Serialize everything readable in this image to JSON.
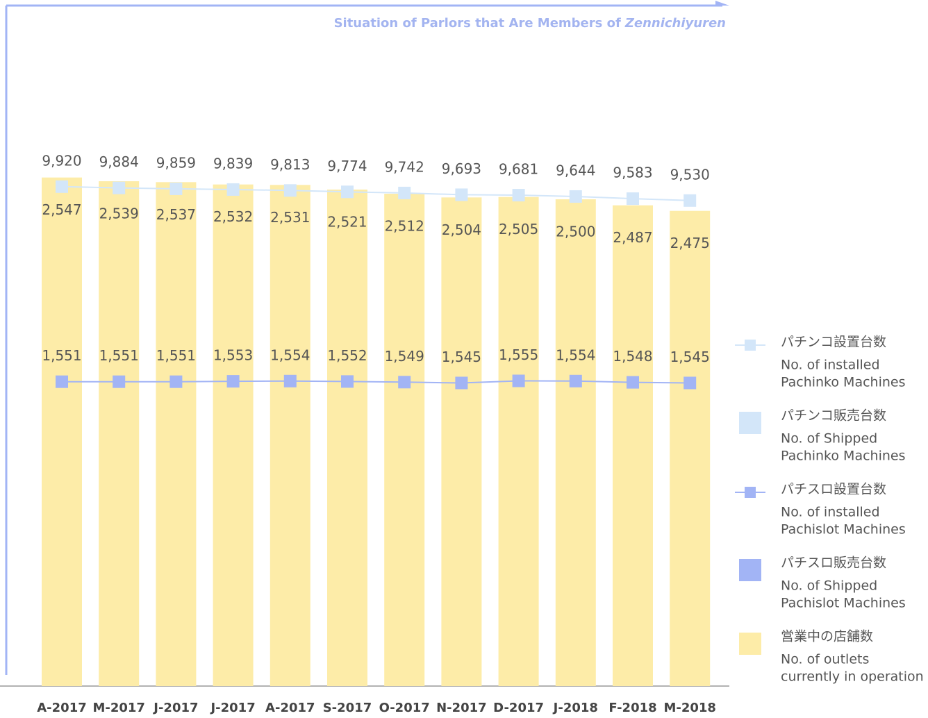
{
  "chart_data": {
    "type": "bar-line",
    "title": "Situation of Parlors that Are Members of",
    "title_em": "Zennichiyuren",
    "categories": [
      "A-2017",
      "M-2017",
      "J-2017",
      "J-2017",
      "A-2017",
      "S-2017",
      "O-2017",
      "N-2017",
      "D-2017",
      "J-2018",
      "F-2018",
      "M-2018"
    ],
    "series": [
      {
        "name": "パチンコ設置台数",
        "name_en": [
          "No. of installed",
          "Pachinko Machines"
        ],
        "color": "#d3e6f9",
        "marker": "line",
        "ylim": [
          -4100,
          14380
        ],
        "values": [
          9920,
          9884,
          9859,
          9839,
          9813,
          9774,
          9742,
          9693,
          9681,
          9644,
          9583,
          9530
        ],
        "value_labels": [
          "9,920",
          "9,884",
          "9,859",
          "9,839",
          "9,813",
          "9,774",
          "9,742",
          "9,693",
          "9,681",
          "9,644",
          "9,583",
          "9,530"
        ]
      },
      {
        "name": "パチンコ販売台数",
        "name_en": [
          "No. of Shipped",
          "Pachinko Machines"
        ],
        "color": "#d3e6f9",
        "marker": "square"
      },
      {
        "name": "パチスロ設置台数",
        "name_en": [
          "No. of installed",
          "Pachislot Machines"
        ],
        "color": "#a2b4f5",
        "marker": "line",
        "ylim": [
          90,
          3250
        ],
        "values": [
          1551,
          1551,
          1551,
          1553,
          1554,
          1552,
          1549,
          1545,
          1555,
          1554,
          1548,
          1545
        ],
        "value_labels": [
          "1,551",
          "1,551",
          "1,551",
          "1,553",
          "1,554",
          "1,552",
          "1,549",
          "1,545",
          "1,555",
          "1,554",
          "1,548",
          "1,545"
        ]
      },
      {
        "name": "パチスロ販売台数",
        "name_en": [
          "No. of Shipped",
          "Pachislot Machines"
        ],
        "color": "#a2b4f5",
        "marker": "square"
      },
      {
        "name": "営業中の店舗数",
        "name_en": [
          "No. of outlets",
          "currently in operation"
        ],
        "color": "#fdeca8",
        "marker": "bar",
        "ylim": [
          1450,
          2870
        ],
        "values": [
          2547,
          2539,
          2537,
          2532,
          2531,
          2521,
          2512,
          2504,
          2505,
          2500,
          2487,
          2475
        ],
        "value_labels": [
          "2,547",
          "2,539",
          "2,537",
          "2,532",
          "2,531",
          "2,521",
          "2,512",
          "2,504",
          "2,505",
          "2,500",
          "2,487",
          "2,475"
        ]
      }
    ]
  }
}
